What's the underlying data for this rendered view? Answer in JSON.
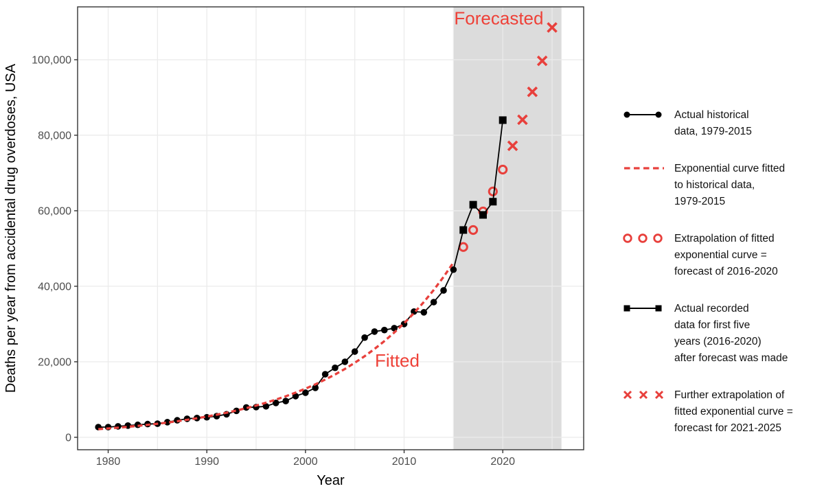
{
  "colors": {
    "series_black": "#000000",
    "series_red": "#e8403c",
    "annotation_red": "#ee4138",
    "shade_gray": "#dcdcdc",
    "gridline_gray": "#ebebeb",
    "panel_border": "#333333",
    "tick_label_gray": "#4d4d4d"
  },
  "chart_data": {
    "type": "line",
    "title": "",
    "xlabel": "Year",
    "ylabel": "Deaths per year from accidental drug overdoses, USA",
    "xlim": [
      1976.9,
      2028.2
    ],
    "ylim": [
      -3300,
      114000
    ],
    "grid": true,
    "x_major_ticks": [
      1980,
      1990,
      2000,
      2010,
      2020
    ],
    "x_gridlines": [
      1980,
      1985,
      1990,
      1995,
      2000,
      2005,
      2010,
      2015,
      2020,
      2025
    ],
    "y_ticks": [
      0,
      20000,
      40000,
      60000,
      80000,
      100000
    ],
    "shaded_region": {
      "x_start": 2015,
      "x_end": 2025.95,
      "label": "Forecasted"
    },
    "annotations": [
      {
        "text": "Forecasted",
        "x": 2019.6,
        "y": 111000
      },
      {
        "text": "Fitted",
        "x": 2009.3,
        "y": 20300
      }
    ],
    "series": [
      {
        "name": "actual-historical-1979-2015",
        "legend": "Actual historical data, 1979-2015",
        "style": "solid-line-filled-circles",
        "color_key": "series_black",
        "x": [
          1979,
          1980,
          1981,
          1982,
          1983,
          1984,
          1985,
          1986,
          1987,
          1988,
          1989,
          1990,
          1991,
          1992,
          1993,
          1994,
          1995,
          1996,
          1997,
          1998,
          1999,
          2000,
          2001,
          2002,
          2003,
          2004,
          2005,
          2006,
          2007,
          2008,
          2009,
          2010,
          2011,
          2012,
          2013,
          2014,
          2015
        ],
        "values": [
          2700,
          2700,
          2900,
          3100,
          3300,
          3500,
          3600,
          4000,
          4500,
          4900,
          5100,
          5300,
          5600,
          6100,
          7000,
          7900,
          8000,
          8200,
          9100,
          9600,
          10900,
          11800,
          13100,
          16700,
          18400,
          20000,
          22700,
          26400,
          28000,
          28400,
          28900,
          30000,
          33300,
          33100,
          35800,
          38900,
          44400
        ]
      },
      {
        "name": "fitted-exponential-curve",
        "legend": "Exponential curve fitted to historical data, 1979-2015",
        "style": "dashed-line",
        "color_key": "series_red",
        "x": [
          1979,
          1980,
          1981,
          1982,
          1983,
          1984,
          1985,
          1986,
          1987,
          1988,
          1989,
          1990,
          1991,
          1992,
          1993,
          1994,
          1995,
          1996,
          1997,
          1998,
          1999,
          2000,
          2001,
          2002,
          2003,
          2004,
          2005,
          2006,
          2007,
          2008,
          2009,
          2010,
          2011,
          2012,
          2013,
          2014,
          2015
        ],
        "values": [
          2150,
          2340,
          2550,
          2780,
          3020,
          3290,
          3590,
          3900,
          4250,
          4630,
          5040,
          5490,
          5980,
          6510,
          7090,
          7720,
          8410,
          9160,
          9970,
          10860,
          11830,
          12880,
          14030,
          15280,
          16630,
          18110,
          19730,
          21480,
          23400,
          25480,
          27740,
          30210,
          32900,
          35830,
          39020,
          42490,
          46280
        ]
      },
      {
        "name": "forecast-circles-2016-2020",
        "legend": "Extrapolation of fitted exponential curve = forecast of 2016-2020",
        "style": "open-circles",
        "color_key": "series_red",
        "x": [
          2016,
          2017,
          2018,
          2019,
          2020
        ],
        "values": [
          50400,
          54900,
          59800,
          65100,
          70900
        ]
      },
      {
        "name": "actual-recorded-2016-2020",
        "legend": "Actual recorded data for first five years (2016-2020) after forecast was made",
        "style": "solid-line-filled-squares",
        "color_key": "series_black",
        "markers_from_x": 2016,
        "x": [
          2015,
          2016,
          2017,
          2018,
          2019,
          2020
        ],
        "values": [
          44400,
          54900,
          61600,
          58900,
          62400,
          84000
        ]
      },
      {
        "name": "forecast-x-2021-2025",
        "legend": "Further extrapolation of fitted exponential curve = forecast for 2021-2025",
        "style": "x-marks",
        "color_key": "series_red",
        "x": [
          2021,
          2022,
          2023,
          2024,
          2025
        ],
        "values": [
          77200,
          84100,
          91500,
          99700,
          108550
        ]
      }
    ]
  },
  "legend": {
    "items": [
      {
        "symbol": "line-with-circles",
        "label": "Actual historical\ndata, 1979-2015"
      },
      {
        "symbol": "red-dashed-line",
        "label": "Exponential curve fitted\nto historical data,\n1979-2015"
      },
      {
        "symbol": "three-open-circles",
        "label": "Extrapolation of fitted\nexponential curve =\nforecast of 2016-2020"
      },
      {
        "symbol": "line-with-squares",
        "label": "Actual recorded\ndata for first five\nyears (2016-2020)\nafter forecast was made"
      },
      {
        "symbol": "three-x-marks",
        "label": "Further extrapolation of\nfitted exponential curve =\nforecast for 2021-2025"
      }
    ]
  }
}
